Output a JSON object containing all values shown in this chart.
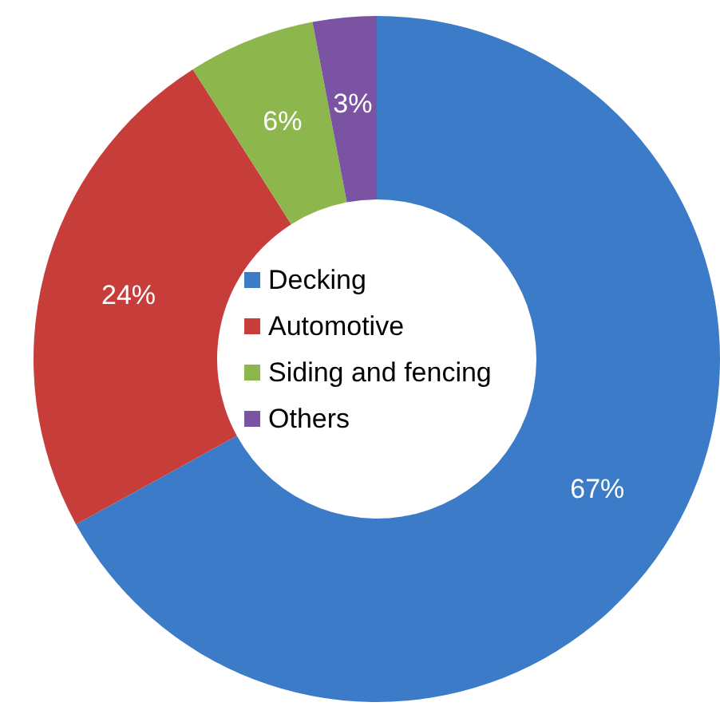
{
  "chart_data": {
    "type": "donut",
    "categories": [
      "Decking",
      "Automotive",
      "Siding and fencing",
      "Others"
    ],
    "values": [
      67,
      24,
      6,
      3
    ],
    "colors": [
      "#3c7bc8",
      "#c63d3a",
      "#8db64c",
      "#7a53a2"
    ],
    "value_labels": [
      "67%",
      "24%",
      "6%",
      "3%"
    ],
    "legend": "center"
  }
}
